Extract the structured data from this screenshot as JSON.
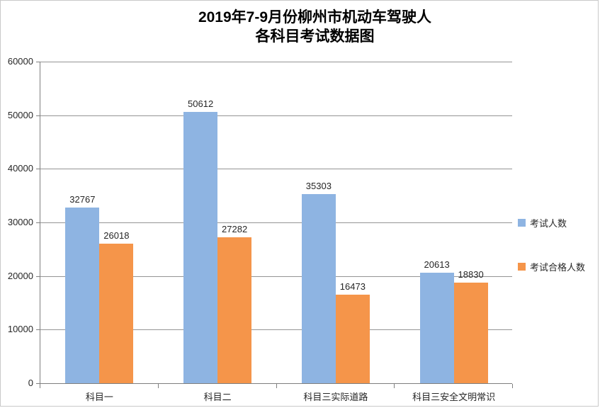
{
  "chart": {
    "title_line1": "2019年7-9月份柳州市机动车驾驶人",
    "title_line2": "各科目考试数据图"
  },
  "chart_data": {
    "type": "bar",
    "title": "2019年7-9月份柳州市机动车驾驶人 各科目考试数据图",
    "categories": [
      "科目一",
      "科目二",
      "科目三实际道路",
      "科目三安全文明常识"
    ],
    "series": [
      {
        "name": "考试人数",
        "color": "#8EB4E2",
        "values": [
          32767,
          50612,
          35303,
          20613
        ]
      },
      {
        "name": "考试合格人数",
        "color": "#F5954A",
        "values": [
          26018,
          27282,
          16473,
          18830
        ]
      }
    ],
    "xlabel": "",
    "ylabel": "",
    "ylim": [
      0,
      60000
    ],
    "ytick_interval": 10000,
    "yticks": [
      0,
      10000,
      20000,
      30000,
      40000,
      50000,
      60000
    ],
    "grid": true,
    "data_labels": true,
    "legend_position": "right",
    "colors": {
      "gridline": "#949494",
      "axis": "#7f7f7f",
      "text": "#262626",
      "border": "#c9c9c9"
    }
  }
}
